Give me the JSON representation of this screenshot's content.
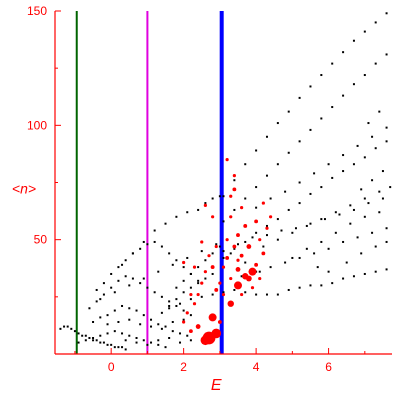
{
  "chart_data": {
    "type": "scatter",
    "title": "",
    "xlabel": "E",
    "ylabel": "<n>",
    "xlim": [
      -1.55,
      7.75
    ],
    "ylim": [
      0,
      150
    ],
    "x_ticks": [
      0,
      2,
      4,
      6
    ],
    "y_ticks": [
      50,
      100,
      150
    ],
    "grid": false,
    "axis_color": "#ff0000",
    "vertical_lines": [
      {
        "x": -0.95,
        "color": "#006400"
      },
      {
        "x": 1.0,
        "color": "#e000e0"
      },
      {
        "x": 3.05,
        "color": "#0000ff"
      }
    ],
    "series": [
      {
        "color": "#000000",
        "marker": "dot",
        "points": [
          [
            -1.4,
            11
          ],
          [
            -1.3,
            12
          ],
          [
            -1.2,
            12
          ],
          [
            -1.1,
            11
          ],
          [
            -1.0,
            10
          ],
          [
            -0.9,
            9
          ],
          [
            -0.8,
            8
          ],
          [
            -0.7,
            8
          ],
          [
            -0.6,
            7
          ],
          [
            -0.5,
            6
          ],
          [
            -0.4,
            6
          ],
          [
            -0.3,
            5
          ],
          [
            -0.2,
            5
          ],
          [
            -0.1,
            4
          ],
          [
            0.0,
            4
          ],
          [
            0.1,
            3
          ],
          [
            0.2,
            3
          ],
          [
            0.3,
            3
          ],
          [
            0.4,
            2
          ],
          [
            -0.9,
            5
          ],
          [
            -0.7,
            6
          ],
          [
            -0.5,
            7
          ],
          [
            -0.3,
            8
          ],
          [
            -0.1,
            9
          ],
          [
            0.1,
            10
          ],
          [
            0.3,
            9
          ],
          [
            0.5,
            8
          ],
          [
            0.7,
            7
          ],
          [
            0.9,
            6
          ],
          [
            1.1,
            5
          ],
          [
            1.3,
            4
          ],
          [
            1.5,
            3
          ],
          [
            -0.5,
            14
          ],
          [
            -0.3,
            16
          ],
          [
            -0.1,
            17
          ],
          [
            0.1,
            19
          ],
          [
            0.3,
            21
          ],
          [
            0.5,
            20
          ],
          [
            0.7,
            19
          ],
          [
            0.9,
            17
          ],
          [
            1.1,
            15
          ],
          [
            1.3,
            13
          ],
          [
            1.5,
            12
          ],
          [
            1.7,
            10
          ],
          [
            1.9,
            9
          ],
          [
            2.1,
            8
          ],
          [
            -0.6,
            20
          ],
          [
            -0.4,
            23
          ],
          [
            -0.2,
            26
          ],
          [
            0.0,
            29
          ],
          [
            0.2,
            32
          ],
          [
            0.4,
            34
          ],
          [
            0.6,
            33
          ],
          [
            0.8,
            31
          ],
          [
            1.0,
            29
          ],
          [
            1.2,
            27
          ],
          [
            1.4,
            25
          ],
          [
            1.6,
            23
          ],
          [
            1.8,
            21
          ],
          [
            2.0,
            19
          ],
          [
            2.2,
            17
          ],
          [
            -0.4,
            28
          ],
          [
            -0.2,
            31
          ],
          [
            0.0,
            35
          ],
          [
            0.2,
            38
          ],
          [
            0.4,
            41
          ],
          [
            0.6,
            44
          ],
          [
            0.8,
            46
          ],
          [
            1.0,
            48
          ],
          [
            1.2,
            49
          ],
          [
            1.4,
            47
          ],
          [
            1.6,
            44
          ],
          [
            1.8,
            41
          ],
          [
            2.0,
            38
          ],
          [
            2.2,
            35
          ],
          [
            2.4,
            32
          ],
          [
            -0.3,
            24
          ],
          [
            0.1,
            27
          ],
          [
            0.5,
            30
          ],
          [
            0.9,
            33
          ],
          [
            1.3,
            36
          ],
          [
            1.7,
            39
          ],
          [
            2.1,
            42
          ],
          [
            2.5,
            45
          ],
          [
            2.9,
            48
          ],
          [
            3.3,
            44
          ],
          [
            3.7,
            40
          ],
          [
            4.1,
            36
          ],
          [
            0.3,
            39
          ],
          [
            0.6,
            44
          ],
          [
            0.9,
            49
          ],
          [
            1.2,
            54
          ],
          [
            1.5,
            57
          ],
          [
            1.8,
            60
          ],
          [
            2.1,
            62
          ],
          [
            2.4,
            63
          ],
          [
            2.6,
            66
          ],
          [
            2.8,
            68
          ],
          [
            3.0,
            69
          ],
          [
            1.6,
            20
          ],
          [
            1.9,
            22
          ],
          [
            2.2,
            24
          ],
          [
            2.5,
            25
          ],
          [
            2.8,
            26
          ],
          [
            3.1,
            27
          ],
          [
            3.4,
            28
          ],
          [
            3.7,
            27
          ],
          [
            4.0,
            26
          ],
          [
            4.3,
            26
          ],
          [
            4.6,
            26
          ],
          [
            4.9,
            28
          ],
          [
            5.2,
            29
          ],
          [
            5.5,
            30
          ],
          [
            5.8,
            30
          ],
          [
            6.1,
            31
          ],
          [
            6.4,
            33
          ],
          [
            6.7,
            34
          ],
          [
            7.0,
            35
          ],
          [
            7.3,
            36
          ],
          [
            7.6,
            37
          ],
          [
            3.1,
            42
          ],
          [
            3.4,
            46
          ],
          [
            3.7,
            49
          ],
          [
            4.0,
            53
          ],
          [
            4.3,
            56
          ],
          [
            4.6,
            59
          ],
          [
            4.9,
            63
          ],
          [
            5.2,
            66
          ],
          [
            5.5,
            70
          ],
          [
            5.8,
            73
          ],
          [
            6.1,
            77
          ],
          [
            6.4,
            80
          ],
          [
            6.7,
            83
          ],
          [
            7.0,
            86
          ],
          [
            7.3,
            90
          ],
          [
            7.6,
            93
          ],
          [
            3.1,
            58
          ],
          [
            3.4,
            63
          ],
          [
            3.7,
            68
          ],
          [
            4.0,
            73
          ],
          [
            4.3,
            78
          ],
          [
            4.6,
            83
          ],
          [
            4.9,
            88
          ],
          [
            5.2,
            93
          ],
          [
            5.5,
            98
          ],
          [
            5.8,
            103
          ],
          [
            6.1,
            108
          ],
          [
            6.4,
            113
          ],
          [
            6.7,
            118
          ],
          [
            7.0,
            122
          ],
          [
            7.3,
            127
          ],
          [
            7.6,
            131
          ],
          [
            3.1,
            69
          ],
          [
            3.4,
            76
          ],
          [
            3.7,
            83
          ],
          [
            4.0,
            89
          ],
          [
            4.3,
            95
          ],
          [
            4.6,
            101
          ],
          [
            4.9,
            106
          ],
          [
            5.2,
            112
          ],
          [
            5.5,
            117
          ],
          [
            5.8,
            122
          ],
          [
            6.1,
            127
          ],
          [
            6.4,
            132
          ],
          [
            6.7,
            137
          ],
          [
            7.0,
            141
          ],
          [
            7.3,
            145
          ],
          [
            7.6,
            149
          ],
          [
            3.1,
            45
          ],
          [
            3.5,
            48
          ],
          [
            3.9,
            51
          ],
          [
            4.3,
            52
          ],
          [
            4.7,
            54
          ],
          [
            5.1,
            55
          ],
          [
            5.5,
            57
          ],
          [
            5.9,
            59
          ],
          [
            6.3,
            61
          ],
          [
            6.7,
            63
          ],
          [
            7.1,
            66
          ],
          [
            7.5,
            68
          ],
          [
            3.6,
            34
          ],
          [
            4.0,
            36
          ],
          [
            4.4,
            38
          ],
          [
            4.8,
            40
          ],
          [
            5.2,
            42
          ],
          [
            5.6,
            44
          ],
          [
            6.0,
            46
          ],
          [
            6.4,
            49
          ],
          [
            6.8,
            51
          ],
          [
            7.2,
            53
          ],
          [
            7.6,
            55
          ],
          [
            4.2,
            47
          ],
          [
            4.6,
            50
          ],
          [
            5.0,
            53
          ],
          [
            5.4,
            56
          ],
          [
            5.8,
            59
          ],
          [
            6.2,
            62
          ],
          [
            6.6,
            65
          ],
          [
            7.0,
            68
          ],
          [
            7.4,
            71
          ],
          [
            7.7,
            73
          ],
          [
            4.0,
            64
          ],
          [
            4.4,
            68
          ],
          [
            4.8,
            71
          ],
          [
            5.2,
            75
          ],
          [
            5.6,
            79
          ],
          [
            6.0,
            83
          ],
          [
            6.4,
            87
          ],
          [
            6.8,
            91
          ],
          [
            7.2,
            95
          ],
          [
            7.6,
            99
          ],
          [
            5.0,
            42
          ],
          [
            5.4,
            46
          ],
          [
            5.8,
            49
          ],
          [
            6.2,
            53
          ],
          [
            6.6,
            57
          ],
          [
            7.0,
            60
          ],
          [
            7.4,
            62
          ],
          [
            1.4,
            18
          ],
          [
            1.6,
            21
          ],
          [
            1.8,
            24
          ],
          [
            2.0,
            27
          ],
          [
            2.2,
            29
          ],
          [
            2.4,
            31
          ],
          [
            2.6,
            33
          ],
          [
            2.8,
            35
          ],
          [
            1.8,
            29
          ],
          [
            2.0,
            32
          ],
          [
            2.2,
            35
          ],
          [
            2.4,
            38
          ],
          [
            2.6,
            41
          ],
          [
            2.8,
            44
          ],
          [
            3.0,
            47
          ],
          [
            -0.1,
            13
          ],
          [
            0.2,
            14
          ],
          [
            0.5,
            15
          ],
          [
            0.8,
            13
          ],
          [
            1.1,
            12
          ],
          [
            1.4,
            11
          ],
          [
            1.7,
            14
          ],
          [
            2.0,
            15
          ],
          [
            0.4,
            6
          ],
          [
            0.7,
            5
          ],
          [
            1.0,
            4
          ],
          [
            1.3,
            6
          ],
          [
            1.6,
            7
          ],
          [
            1.9,
            5
          ],
          [
            2.2,
            6
          ],
          [
            6.5,
            40
          ],
          [
            6.9,
            44
          ],
          [
            7.3,
            47
          ],
          [
            7.6,
            49
          ],
          [
            6.0,
            36
          ],
          [
            5.7,
            38
          ],
          [
            7.5,
            80
          ],
          [
            7.2,
            76
          ],
          [
            6.9,
            72
          ],
          [
            7.4,
            106
          ],
          [
            7.1,
            101
          ]
        ]
      },
      {
        "color": "#ff0000",
        "marker": "bubble",
        "points": [
          [
            2.7,
            7,
            4
          ],
          [
            2.6,
            6,
            3
          ],
          [
            2.9,
            9,
            3
          ],
          [
            2.8,
            16,
            2.5
          ],
          [
            3.3,
            22,
            2
          ],
          [
            3.5,
            30,
            2.5
          ],
          [
            3.7,
            34,
            2
          ],
          [
            3.9,
            36,
            2.5
          ],
          [
            3.8,
            33,
            1.8
          ],
          [
            3.5,
            37,
            1.5
          ],
          [
            3.6,
            43,
            1.2
          ],
          [
            3.8,
            47,
            1.5
          ],
          [
            3.5,
            52,
            1.2
          ],
          [
            3.7,
            56,
            1.2
          ],
          [
            4.0,
            58,
            1.2
          ],
          [
            3.3,
            60,
            1
          ],
          [
            3.6,
            64,
            1
          ],
          [
            3.2,
            42,
            1.2
          ],
          [
            3.1,
            38,
            1
          ],
          [
            3.3,
            33,
            1
          ],
          [
            2.8,
            38,
            1.2
          ],
          [
            2.6,
            36,
            1
          ],
          [
            2.5,
            31,
            1
          ],
          [
            2.4,
            26,
            1
          ],
          [
            2.3,
            22,
            1
          ],
          [
            2.1,
            18,
            1
          ],
          [
            2.0,
            14,
            1
          ],
          [
            2.2,
            10,
            1.2
          ],
          [
            2.4,
            12,
            1.5
          ],
          [
            2.9,
            28,
            1.2
          ],
          [
            3.1,
            26,
            1
          ],
          [
            2.7,
            43,
            1
          ],
          [
            2.5,
            49,
            1
          ],
          [
            3.3,
            69,
            1
          ],
          [
            3.4,
            72,
            1.2
          ],
          [
            3.4,
            78,
            1
          ],
          [
            3.2,
            85,
            1
          ],
          [
            2.8,
            60,
            1
          ],
          [
            2.6,
            65,
            1
          ],
          [
            4.2,
            44,
            1.2
          ],
          [
            4.1,
            50,
            1
          ],
          [
            4.3,
            55,
            1
          ],
          [
            4.0,
            39,
            1.2
          ],
          [
            3.9,
            29,
            1
          ],
          [
            4.1,
            33,
            1
          ],
          [
            3.4,
            47,
            1.2
          ],
          [
            3.5,
            41,
            1
          ],
          [
            2.9,
            47,
            1
          ],
          [
            2.3,
            38,
            1
          ],
          [
            3.0,
            31,
            1
          ],
          [
            3.6,
            26,
            1
          ],
          [
            2.0,
            40,
            1
          ],
          [
            4.4,
            60,
            1
          ],
          [
            4.2,
            66,
            1
          ],
          [
            3.0,
            14,
            1.2
          ],
          [
            2.2,
            26,
            1
          ],
          [
            3.2,
            50,
            1
          ]
        ]
      }
    ]
  }
}
